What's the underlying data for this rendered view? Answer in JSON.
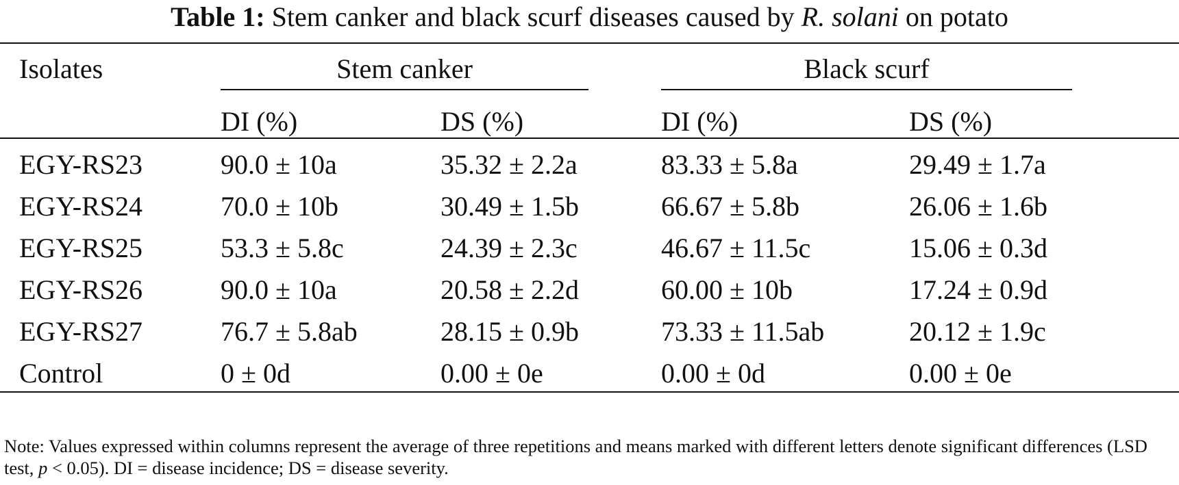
{
  "caption": {
    "label": "Table 1:",
    "text_before": "Stem canker and black scurf diseases caused by",
    "species": "R. solani",
    "text_after": "on potato"
  },
  "headers": {
    "isolates": "Isolates",
    "group_stem": "Stem canker",
    "group_black": "Black scurf",
    "stem_di": "DI (%)",
    "stem_ds": "DS (%)",
    "black_di": "DI (%)",
    "black_ds": "DS (%)"
  },
  "rows": [
    {
      "isolate": "EGY-RS23",
      "stem_di": "90.0 ± 10a",
      "stem_ds": "35.32 ± 2.2a",
      "black_di": "83.33 ± 5.8a",
      "black_ds": "29.49 ± 1.7a"
    },
    {
      "isolate": "EGY-RS24",
      "stem_di": "70.0 ± 10b",
      "stem_ds": "30.49 ± 1.5b",
      "black_di": "66.67 ± 5.8b",
      "black_ds": "26.06 ± 1.6b"
    },
    {
      "isolate": "EGY-RS25",
      "stem_di": "53.3 ± 5.8c",
      "stem_ds": "24.39 ± 2.3c",
      "black_di": "46.67 ± 11.5c",
      "black_ds": "15.06 ± 0.3d"
    },
    {
      "isolate": "EGY-RS26",
      "stem_di": "90.0 ± 10a",
      "stem_ds": "20.58 ± 2.2d",
      "black_di": "60.00 ± 10b",
      "black_ds": "17.24 ± 0.9d"
    },
    {
      "isolate": "EGY-RS27",
      "stem_di": "76.7 ± 5.8ab",
      "stem_ds": "28.15 ± 0.9b",
      "black_di": "73.33 ± 11.5ab",
      "black_ds": "20.12 ± 1.9c"
    },
    {
      "isolate": "Control",
      "stem_di": "0 ± 0d",
      "stem_ds": "0.00 ± 0e",
      "black_di": "0.00 ± 0d",
      "black_ds": "0.00 ± 0e"
    }
  ],
  "note": {
    "text_before": "Note: Values expressed within columns represent the average of three repetitions and means marked with different letters denote significant differences (LSD test,",
    "p_symbol": "p",
    "text_after": "< 0.05). DI = disease incidence; DS = disease severity."
  }
}
